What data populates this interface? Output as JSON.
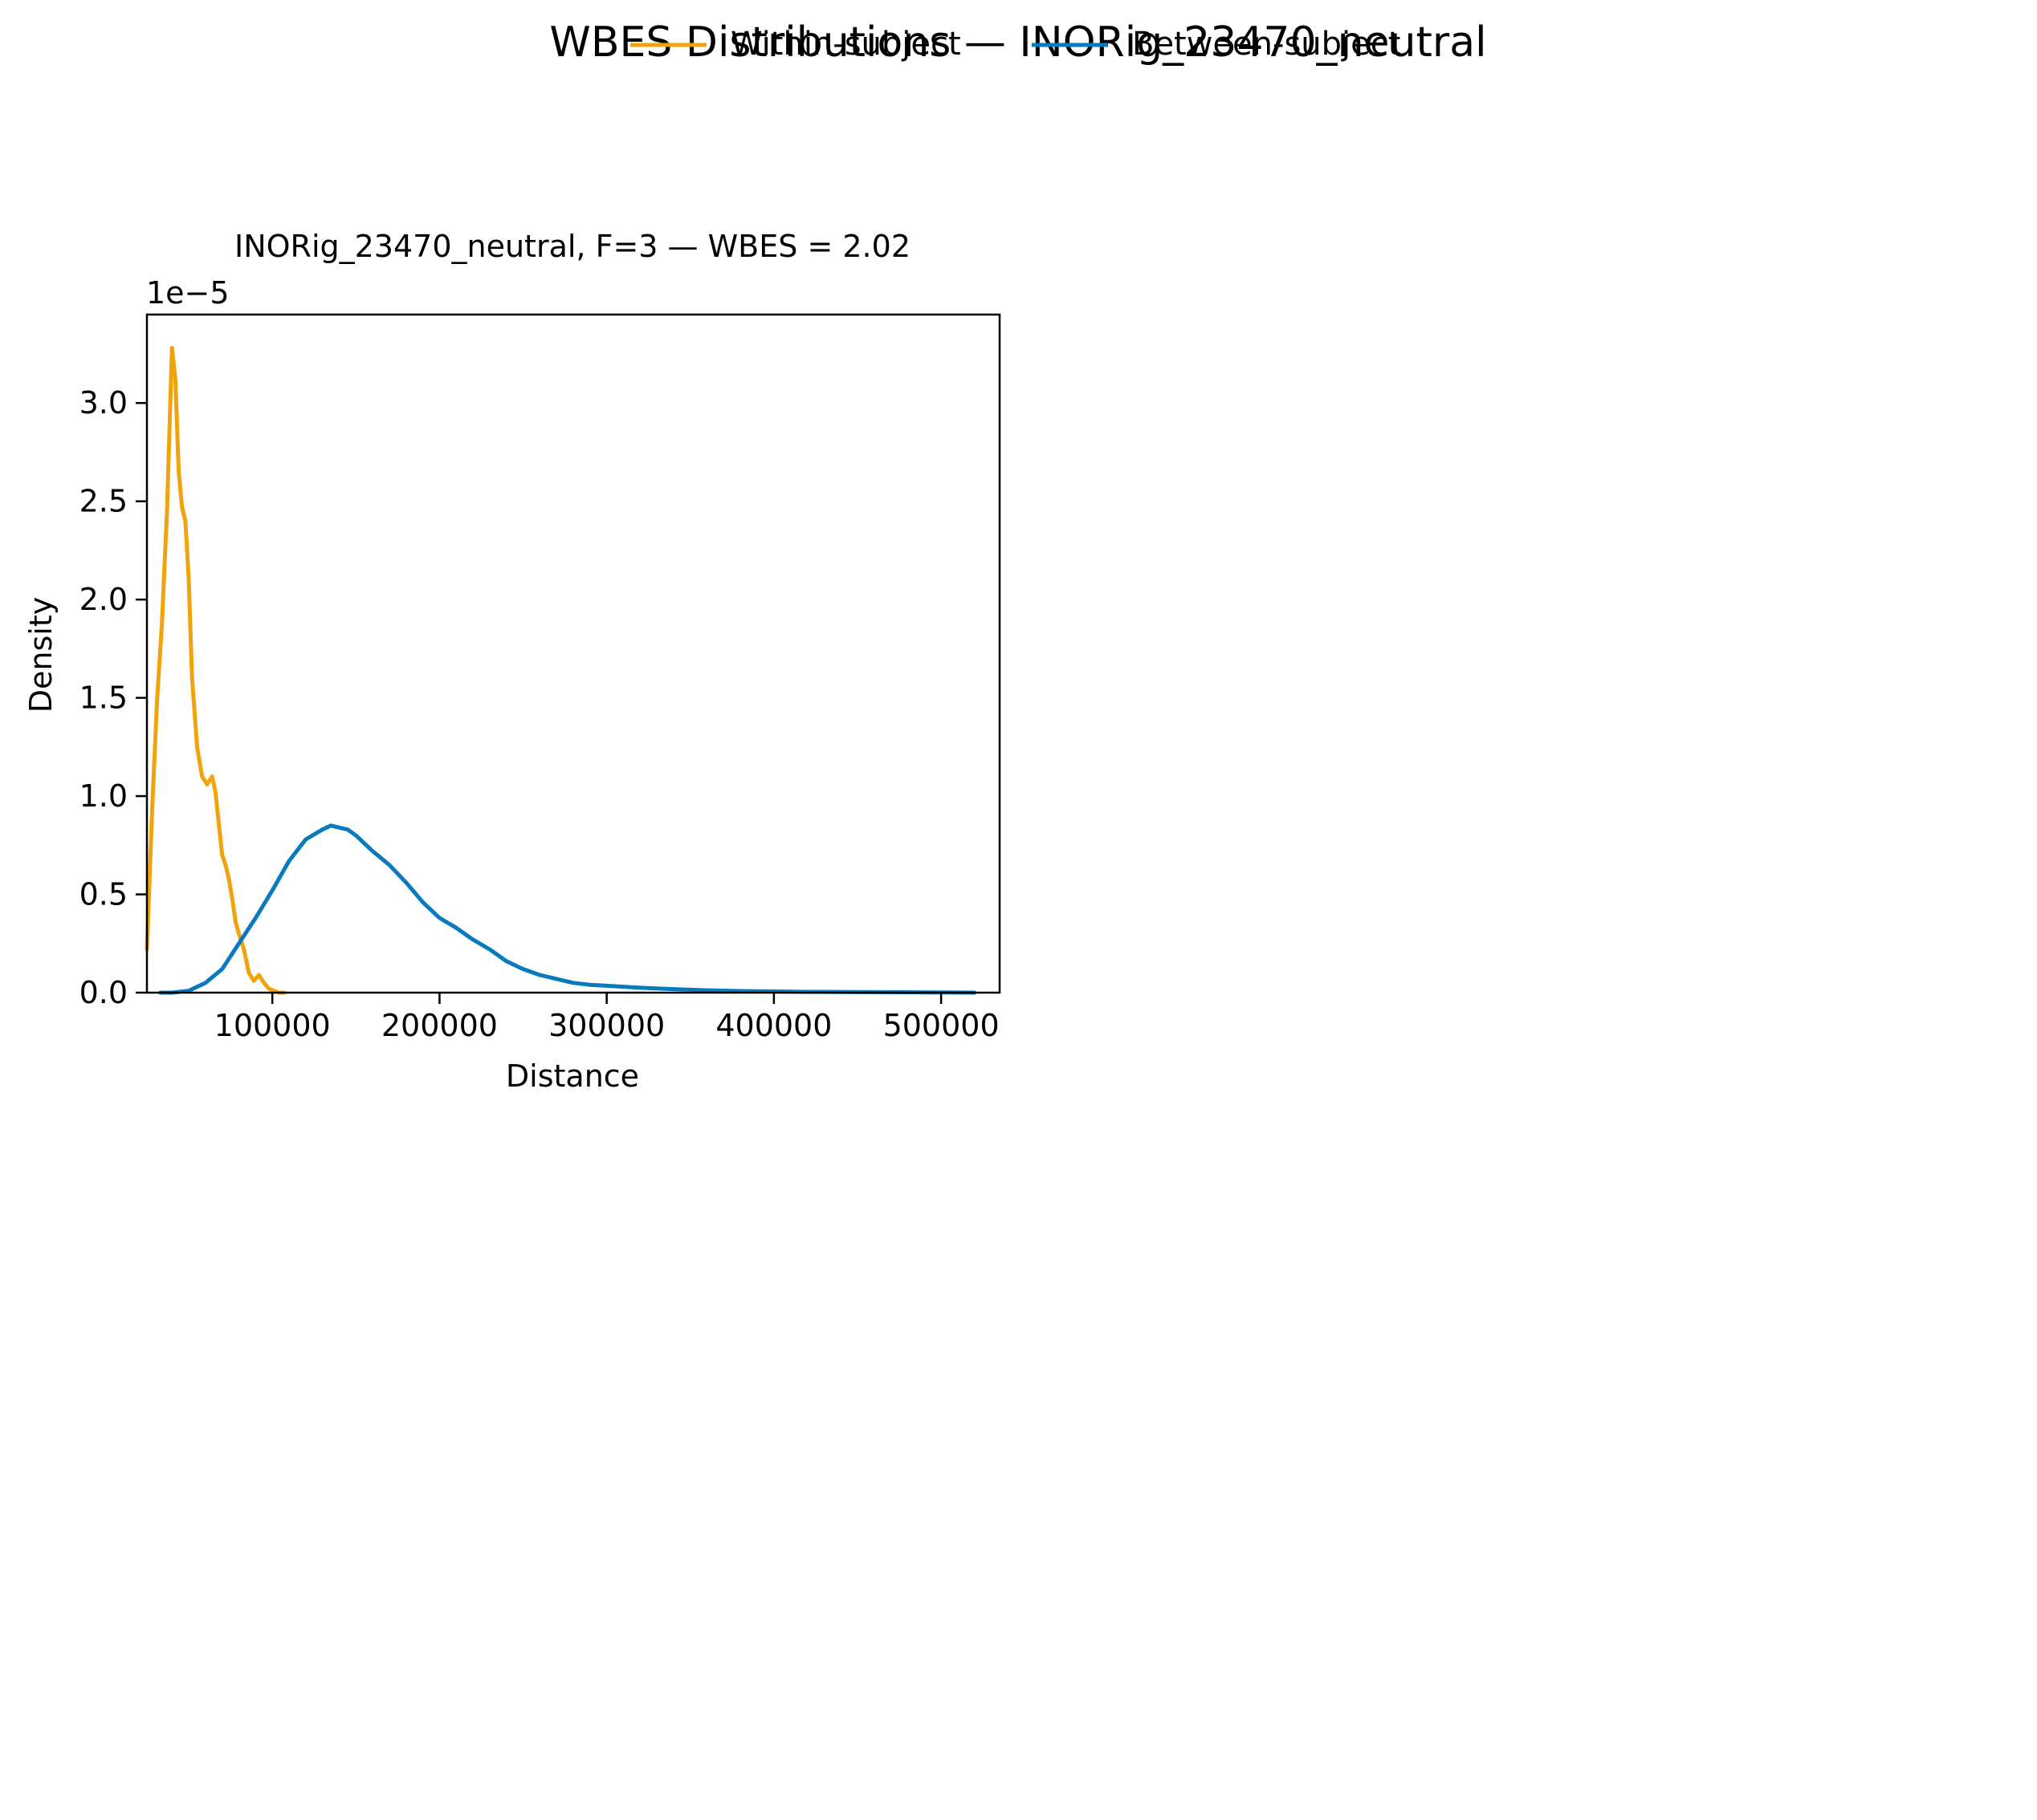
{
  "figure": {
    "suptitle": "WBES Distributions — INORig_23470_neutral",
    "legend": {
      "placement": "top-center",
      "entries": [
        {
          "label": "Within-subject",
          "color": "#f0a30a"
        },
        {
          "label": "Between-subject",
          "color": "#0a7abf"
        }
      ]
    }
  },
  "chart_data": {
    "type": "line",
    "title": "INORig_23470_neutral, F=3 — WBES = 2.02",
    "xlabel": "Distance",
    "ylabel": "Density",
    "y_offset_label": "1e−5",
    "xlim": [
      25000,
      535000
    ],
    "ylim": [
      0,
      3.45
    ],
    "y_scale_factor": 1e-05,
    "x_ticks": [
      100000,
      200000,
      300000,
      400000,
      500000
    ],
    "x_tick_labels": [
      "100000",
      "200000",
      "300000",
      "400000",
      "500000"
    ],
    "y_ticks": [
      0.0,
      0.5,
      1.0,
      1.5,
      2.0,
      2.5,
      3.0
    ],
    "y_tick_labels": [
      "0.0",
      "0.5",
      "1.0",
      "1.5",
      "2.0",
      "2.5",
      "3.0"
    ],
    "grid": false,
    "series": [
      {
        "name": "Within-subject",
        "color": "#f0a30a",
        "x": [
          25000,
          28000,
          31000,
          34000,
          37000,
          40000,
          42000,
          44000,
          46000,
          48000,
          50000,
          52000,
          55000,
          58000,
          61000,
          64000,
          66000,
          68000,
          70000,
          72000,
          74000,
          76000,
          78000,
          80000,
          83000,
          86000,
          89000,
          92000,
          95000,
          98000,
          101000,
          104000,
          107000
        ],
        "y": [
          0.22,
          0.9,
          1.48,
          1.88,
          2.45,
          3.28,
          3.12,
          2.65,
          2.47,
          2.4,
          2.1,
          1.6,
          1.25,
          1.1,
          1.06,
          1.1,
          1.02,
          0.86,
          0.7,
          0.65,
          0.58,
          0.48,
          0.36,
          0.3,
          0.22,
          0.1,
          0.06,
          0.09,
          0.05,
          0.02,
          0.01,
          0.0,
          0.0
        ]
      },
      {
        "name": "Between-subject",
        "color": "#0a7abf",
        "x": [
          33000,
          40000,
          50000,
          60000,
          70000,
          80000,
          90000,
          100000,
          110000,
          120000,
          130000,
          135000,
          140000,
          145000,
          150000,
          160000,
          170000,
          180000,
          190000,
          200000,
          210000,
          220000,
          230000,
          240000,
          250000,
          260000,
          270000,
          280000,
          290000,
          300000,
          320000,
          340000,
          360000,
          380000,
          400000,
          420000,
          450000,
          480000,
          500000,
          520000
        ],
        "y": [
          0.0,
          0.0,
          0.01,
          0.05,
          0.12,
          0.25,
          0.38,
          0.52,
          0.67,
          0.78,
          0.83,
          0.85,
          0.84,
          0.83,
          0.8,
          0.72,
          0.65,
          0.56,
          0.46,
          0.38,
          0.33,
          0.27,
          0.22,
          0.16,
          0.12,
          0.09,
          0.07,
          0.05,
          0.04,
          0.035,
          0.025,
          0.018,
          0.012,
          0.008,
          0.006,
          0.004,
          0.003,
          0.002,
          0.001,
          0.0
        ]
      }
    ]
  }
}
